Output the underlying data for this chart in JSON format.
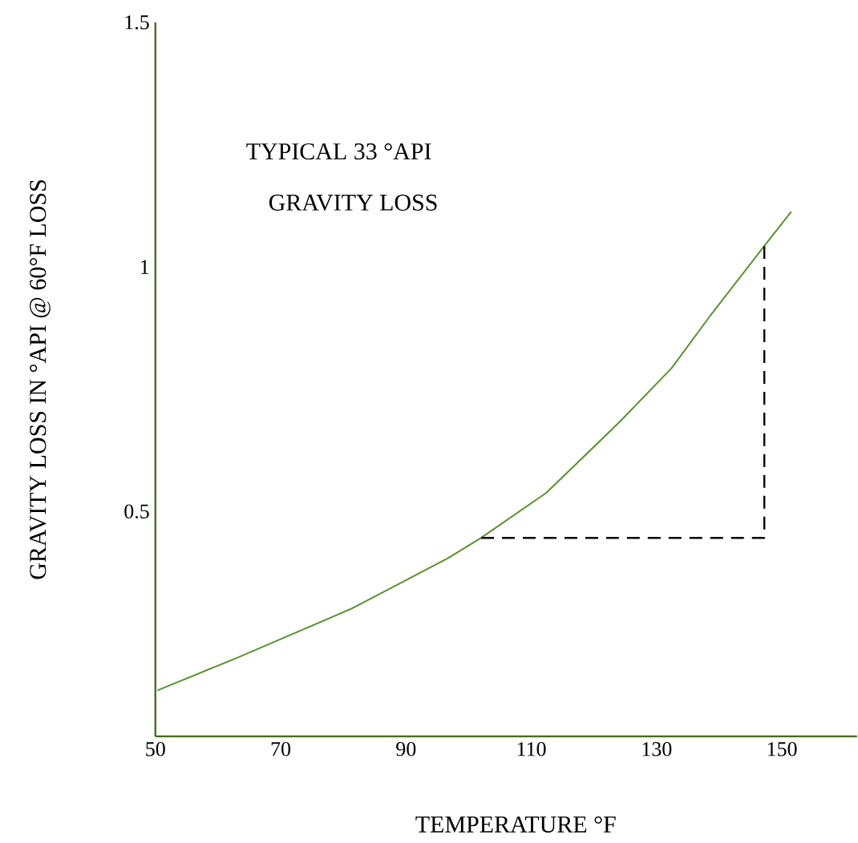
{
  "chart_data": {
    "type": "line",
    "xlabel": "TEMPERATURE °F",
    "ylabel": "GRAVITY LOSS IN °API @ 60°F LOSS",
    "annotations": [
      "TYPICAL 33 °API",
      "GRAVITY  LOSS"
    ],
    "xlim": [
      50,
      162
    ],
    "ylim": [
      0.04,
      1.5
    ],
    "xticks": [
      50,
      70,
      90,
      110,
      130,
      150
    ],
    "yticks": [
      0.5,
      1,
      1.5
    ],
    "series": [
      {
        "color": "#5b9130",
        "line_style": "solid",
        "x": [
          50.3,
          62.9,
          81.1,
          96.8,
          102.0,
          112.4,
          124.1,
          132.4,
          138.5,
          147.2,
          151.5
        ],
        "values": [
          0.134,
          0.2,
          0.3,
          0.405,
          0.446,
          0.538,
          0.683,
          0.793,
          0.899,
          1.043,
          1.113
        ]
      },
      {
        "type": "line",
        "color": "#000000",
        "line_style": "dashed",
        "x": [
          102.0,
          147.2,
          147.2
        ],
        "values": [
          0.446,
          0.446,
          1.043
        ]
      }
    ]
  }
}
